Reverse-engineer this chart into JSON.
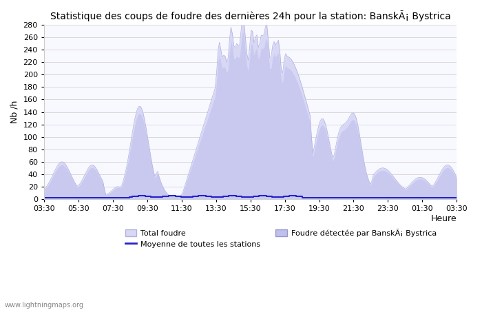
{
  "title": "Statistique des coups de foudre des dernières 24h pour la station: BanskÃ¡ Bystrica",
  "ylabel": "Nb /h",
  "xlabel_right": "Heure",
  "watermark": "www.lightningmaps.org",
  "x_ticks": [
    "03:30",
    "05:30",
    "07:30",
    "09:30",
    "11:30",
    "13:30",
    "15:30",
    "17:30",
    "19:30",
    "21:30",
    "23:30",
    "01:30",
    "03:30"
  ],
  "ylim": [
    0,
    280
  ],
  "yticks": [
    0,
    20,
    40,
    60,
    80,
    100,
    120,
    140,
    160,
    180,
    200,
    220,
    240,
    260,
    280
  ],
  "color_total_fill": "#d8d8f5",
  "color_total_edge": "#b0b0e0",
  "color_station_fill": "#c0c0ee",
  "color_station_edge": "#9898cc",
  "color_avg_line": "#2222cc",
  "legend_labels": [
    "Total foudre",
    "Moyenne de toutes les stations",
    "Foudre détectée par BanskÃ¡ Bystrica"
  ],
  "n_points": 288,
  "avg_value": 2.5,
  "background_color": "#f8f8ff"
}
